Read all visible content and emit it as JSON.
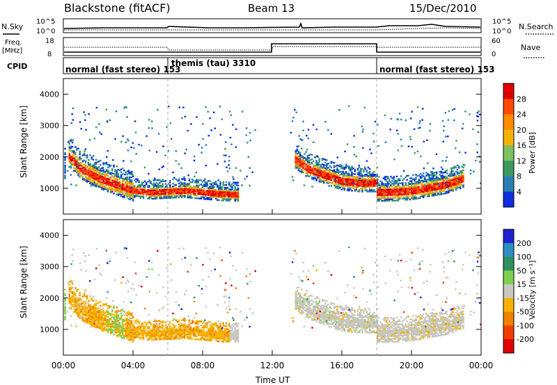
{
  "header": {
    "title": "Blackstone (fitACF)",
    "beam": "Beam 13",
    "date": "15/Dec/2010"
  },
  "status_panels": {
    "nsky_label": "N.Sky",
    "nsearch_label": "N.Search",
    "freq_label": "Freq.",
    "freq_unit": "[MHz]",
    "nave_label": "Nave",
    "cpid_label": "CPID",
    "noise_ticks_left": [
      "10^5",
      "10^0"
    ],
    "noise_ticks_right": [
      "10^5",
      "10^0"
    ],
    "freq_ticks": [
      "18",
      "8"
    ],
    "nave_ticks": [
      "60",
      "0"
    ],
    "cpid_segments": [
      {
        "label": "normal (fast stereo) 153",
        "start_hour": 0
      },
      {
        "label": "themis (tau) 3310",
        "start_hour": 6
      },
      {
        "label": "normal (fast stereo) 153",
        "start_hour": 18
      }
    ]
  },
  "colorbars": {
    "power": {
      "label": "Power [dB]",
      "ticks": [
        "28",
        "24",
        "20",
        "16",
        "12",
        "8",
        "4"
      ],
      "colors": [
        "#e00000",
        "#ff4a00",
        "#ff8c00",
        "#f5b300",
        "#80c060",
        "#3c9a60",
        "#2a7fb0",
        "#1030e0"
      ]
    },
    "velocity": {
      "label": "Velocity [m s⁻¹]",
      "ticks": [
        "200",
        "100",
        "50",
        "15",
        "-15",
        "-50",
        "-100",
        "-200"
      ],
      "colors": [
        "#2020d0",
        "#2e8fbf",
        "#2e8f5f",
        "#80d050",
        "#c8c8c0",
        "#f5b300",
        "#f08000",
        "#f04000",
        "#e00000"
      ]
    }
  },
  "axes": {
    "ylabel": "Slant Range [km]",
    "yticks": [
      "4000",
      "3000",
      "2000",
      "1000"
    ],
    "xticks": [
      "00:00",
      "04:00",
      "08:00",
      "12:00",
      "16:00",
      "20:00",
      "00:00"
    ],
    "xlabel": "Time UT"
  },
  "chart_data": [
    {
      "type": "heatmap",
      "title": "",
      "quantity": "Power [dB]",
      "xlim": [
        0,
        24
      ],
      "ylim": [
        180,
        4500
      ],
      "mode_change_hours": [
        6,
        12,
        18
      ],
      "echo_bands": [
        {
          "x": [
            0.3,
            1,
            2,
            3,
            4,
            5,
            6,
            7,
            8,
            9,
            10
          ],
          "range_km": [
            2000,
            1600,
            1300,
            1100,
            900,
            850,
            880,
            900,
            850,
            800,
            780
          ]
        },
        {
          "x": [
            13.3,
            14,
            15,
            16,
            17,
            18
          ],
          "range_km": [
            1900,
            1600,
            1400,
            1200,
            1150,
            1150
          ]
        },
        {
          "x": [
            18,
            19,
            20,
            21,
            22,
            23
          ],
          "range_km": [
            850,
            860,
            900,
            1000,
            1100,
            1300
          ]
        }
      ]
    },
    {
      "type": "heatmap",
      "title": "",
      "quantity": "Velocity [m s⁻¹]",
      "xlim": [
        0,
        24
      ],
      "ylim": [
        180,
        4500
      ]
    }
  ]
}
